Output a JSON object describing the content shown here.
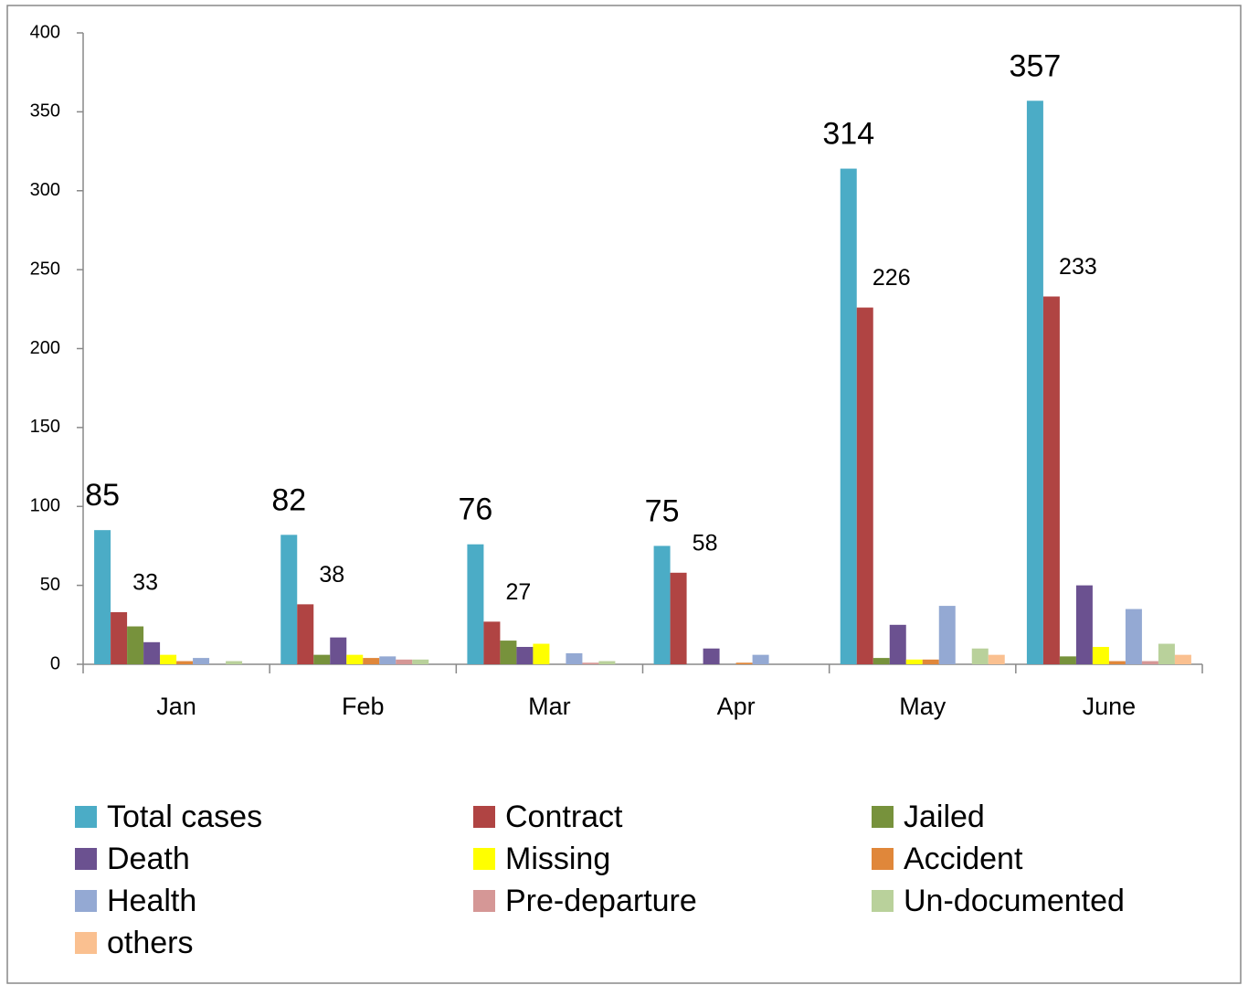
{
  "chart_data": {
    "type": "bar",
    "categories": [
      "Jan",
      "Feb",
      "Mar",
      "Apr",
      "May",
      "June"
    ],
    "series": [
      {
        "name": "Total cases",
        "color": "#4bacc6",
        "values": [
          85,
          82,
          76,
          75,
          314,
          357
        ],
        "show_labels": true
      },
      {
        "name": "Contract",
        "color": "#b04443",
        "values": [
          33,
          38,
          27,
          58,
          226,
          233
        ],
        "show_labels": true
      },
      {
        "name": "Jailed",
        "color": "#77923c",
        "values": [
          24,
          6,
          15,
          0,
          4,
          5
        ]
      },
      {
        "name": "Death",
        "color": "#6b5190",
        "values": [
          14,
          17,
          11,
          10,
          25,
          50
        ]
      },
      {
        "name": "Missing",
        "color": "#ffff00",
        "values": [
          6,
          6,
          13,
          0,
          3,
          11
        ]
      },
      {
        "name": "Accident",
        "color": "#e0873a",
        "values": [
          2,
          4,
          0,
          1,
          3,
          2
        ]
      },
      {
        "name": "Health",
        "color": "#94a9d3",
        "values": [
          4,
          5,
          7,
          6,
          37,
          35
        ]
      },
      {
        "name": "Pre-departure",
        "color": "#d59796",
        "values": [
          0,
          3,
          1,
          0,
          0,
          2
        ]
      },
      {
        "name": "Un-documented",
        "color": "#b9d19b",
        "values": [
          2,
          3,
          2,
          0,
          10,
          13
        ]
      },
      {
        "name": "others",
        "color": "#fac090",
        "values": [
          0,
          0,
          0,
          0,
          6,
          6
        ]
      }
    ],
    "ylim": [
      0,
      400
    ],
    "yticks": [
      0,
      50,
      100,
      150,
      200,
      250,
      300,
      350,
      400
    ],
    "legend": "bottom"
  }
}
